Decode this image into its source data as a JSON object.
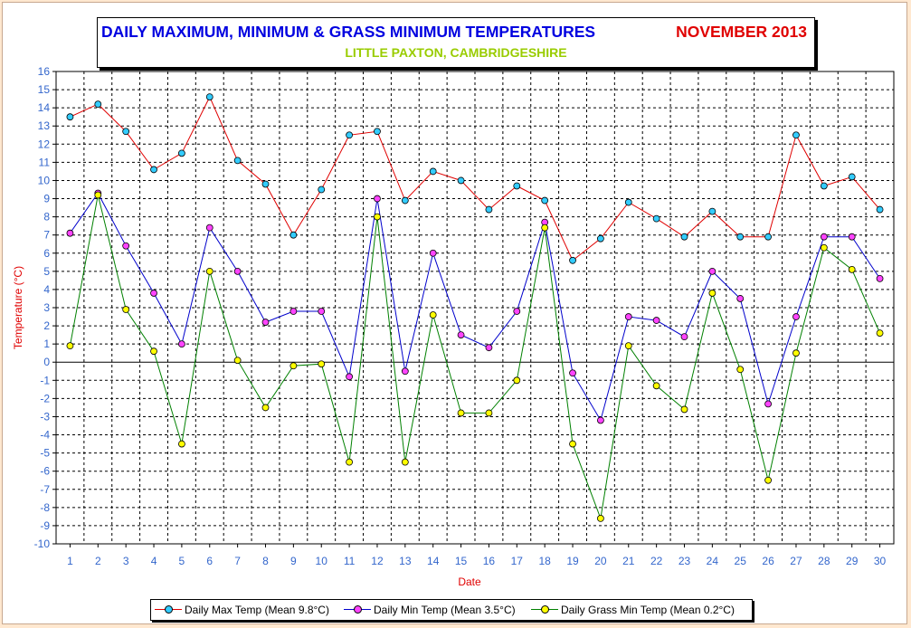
{
  "title": {
    "main": "DAILY MAXIMUM, MINIMUM & GRASS MINIMUM TEMPERATURES",
    "month": "NOVEMBER 2013",
    "subtitle": "LITTLE PAXTON, CAMBRIDGESHIRE"
  },
  "colors": {
    "background": "#FFE8D0",
    "title": "#0000E0",
    "month": "#E00000",
    "subtitle": "#99CC00",
    "axis_labels": "#E00000",
    "tick_labels": "#3366CC"
  },
  "chart_data": {
    "type": "line",
    "xlabel": "Date",
    "ylabel": "Temperature (°C)",
    "ylim": [
      -10,
      16
    ],
    "grid": true,
    "legend_position": "bottom",
    "x": [
      1,
      2,
      3,
      4,
      5,
      6,
      7,
      8,
      9,
      10,
      11,
      12,
      13,
      14,
      15,
      16,
      17,
      18,
      19,
      20,
      21,
      22,
      23,
      24,
      25,
      26,
      27,
      28,
      29,
      30
    ],
    "y_ticks": [
      16,
      15,
      14,
      13,
      12,
      11,
      10,
      9,
      8,
      7,
      6,
      5,
      4,
      3,
      2,
      1,
      0,
      -1,
      -2,
      -3,
      -4,
      -5,
      -6,
      -7,
      -8,
      -9,
      -10
    ],
    "series": [
      {
        "name": "Daily Max Temp (Mean 9.8°C)",
        "line_color": "#E00000",
        "marker_color": "#33CCFF",
        "values": [
          13.5,
          14.2,
          12.7,
          10.6,
          11.5,
          14.6,
          11.1,
          9.8,
          7.0,
          9.5,
          12.5,
          12.7,
          8.9,
          10.5,
          10.0,
          8.4,
          9.7,
          8.9,
          5.6,
          6.8,
          8.8,
          7.9,
          6.9,
          8.3,
          6.9,
          6.9,
          12.5,
          9.7,
          10.2,
          8.4
        ]
      },
      {
        "name": "Daily Min Temp (Mean 3.5°C)",
        "line_color": "#0000CC",
        "marker_color": "#FF44FF",
        "values": [
          7.1,
          9.3,
          6.4,
          3.8,
          1.0,
          7.4,
          5.0,
          2.2,
          2.8,
          2.8,
          -0.8,
          9.0,
          -0.5,
          6.0,
          1.5,
          0.8,
          2.8,
          7.7,
          -0.6,
          -3.2,
          2.5,
          2.3,
          1.4,
          5.0,
          3.5,
          -2.3,
          2.5,
          6.9,
          6.9,
          4.6
        ]
      },
      {
        "name": "Daily Grass Min Temp (Mean 0.2°C)",
        "line_color": "#008000",
        "marker_color": "#FFFF00",
        "values": [
          0.9,
          9.2,
          2.9,
          0.6,
          -4.5,
          5.0,
          0.1,
          -2.5,
          -0.2,
          -0.1,
          -5.5,
          8.0,
          -5.5,
          2.6,
          -2.8,
          -2.8,
          -1.0,
          7.4,
          -4.5,
          -8.6,
          0.9,
          -1.3,
          -2.6,
          3.8,
          -0.4,
          -6.5,
          0.5,
          6.3,
          5.1,
          1.6
        ]
      }
    ]
  }
}
